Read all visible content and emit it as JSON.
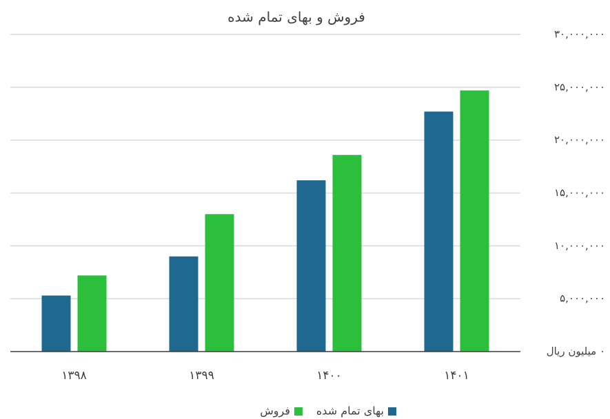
{
  "chart_data": {
    "type": "bar",
    "title": "فروش و بهای تمام شده",
    "categories": [
      "۱۳۹۸",
      "۱۳۹۹",
      "۱۴۰۰",
      "۱۴۰۱"
    ],
    "series": [
      {
        "name": "بهای تمام شده",
        "color": "#1f6990",
        "values": [
          5300000,
          9000000,
          16200000,
          22700000
        ]
      },
      {
        "name": "فروش",
        "color": "#2cbf3c",
        "values": [
          7200000,
          13000000,
          18600000,
          24700000
        ]
      }
    ],
    "ylim": [
      0,
      30000000
    ],
    "yticks": [
      {
        "value": 0,
        "label": "۰ میلیون ریال"
      },
      {
        "value": 5000000,
        "label": "۵,۰۰۰,۰۰۰"
      },
      {
        "value": 10000000,
        "label": "۱۰,۰۰۰,۰۰۰"
      },
      {
        "value": 15000000,
        "label": "۱۵,۰۰۰,۰۰۰"
      },
      {
        "value": 20000000,
        "label": "۲۰,۰۰۰,۰۰۰"
      },
      {
        "value": 25000000,
        "label": "۲۵,۰۰۰,۰۰۰"
      },
      {
        "value": 30000000,
        "label": "۳۰,۰۰۰,۰۰۰"
      }
    ],
    "grid": true,
    "legend": "bottom"
  }
}
